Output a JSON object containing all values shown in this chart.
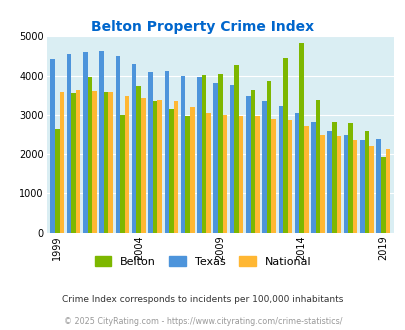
{
  "title": "Belton Property Crime Index",
  "years": [
    1999,
    2000,
    2001,
    2002,
    2003,
    2004,
    2005,
    2006,
    2007,
    2008,
    2009,
    2010,
    2011,
    2012,
    2013,
    2014,
    2015,
    2016,
    2017,
    2018,
    2019
  ],
  "belton": [
    2650,
    3550,
    3970,
    3580,
    2990,
    3730,
    3360,
    3150,
    2980,
    4020,
    4040,
    4270,
    3640,
    3860,
    4440,
    4820,
    3390,
    2810,
    2790,
    2590,
    1920
  ],
  "texas": [
    4430,
    4560,
    4600,
    4620,
    4510,
    4290,
    4090,
    4110,
    3990,
    3960,
    3810,
    3760,
    3480,
    3360,
    3230,
    3040,
    2820,
    2580,
    2490,
    2360,
    2380
  ],
  "national": [
    3590,
    3640,
    3610,
    3570,
    3490,
    3440,
    3390,
    3360,
    3200,
    3050,
    3000,
    2980,
    2970,
    2890,
    2870,
    2720,
    2490,
    2450,
    2350,
    2210,
    2120
  ],
  "belton_color": "#7db700",
  "texas_color": "#4d94db",
  "national_color": "#ffb733",
  "bg_color": "#daeef3",
  "ylim": [
    0,
    5000
  ],
  "yticks": [
    0,
    1000,
    2000,
    3000,
    4000,
    5000
  ],
  "xlabel_ticks": [
    1999,
    2004,
    2009,
    2014,
    2019
  ],
  "footnote1": "Crime Index corresponds to incidents per 100,000 inhabitants",
  "footnote2": "© 2025 CityRating.com - https://www.cityrating.com/crime-statistics/",
  "title_color": "#0066cc",
  "footnote1_color": "#333333",
  "footnote2_color": "#999999"
}
